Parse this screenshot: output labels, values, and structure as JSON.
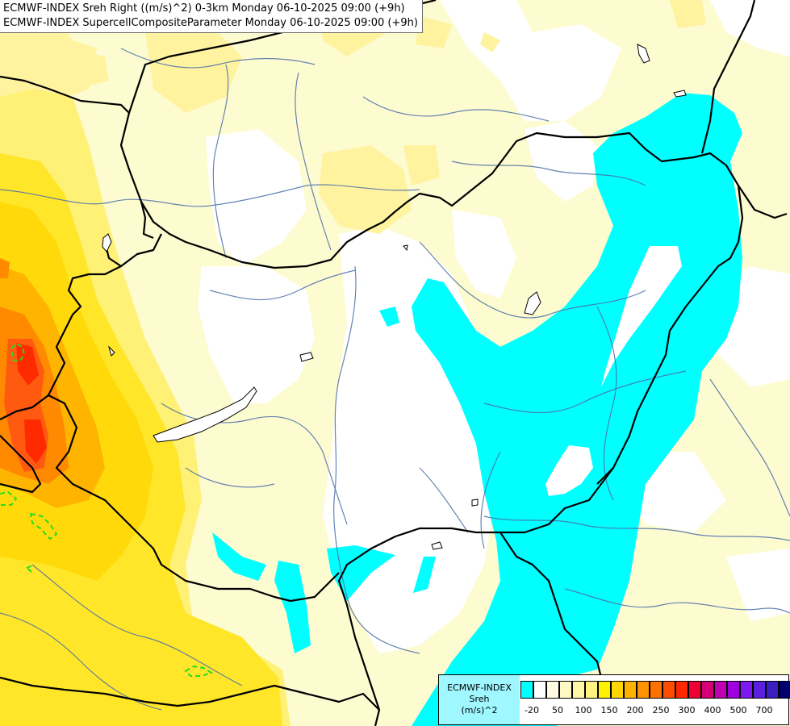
{
  "title": {
    "line1": "ECMWF-INDEX Sreh Right ((m/s)^2) 0-3km Monday 06-10-2025 09:00 (+9h)",
    "line2": "ECMWF-INDEX SupercellCompositeParameter Monday 06-10-2025 09:00 (+9h)"
  },
  "legend": {
    "source": "ECMWF-INDEX",
    "variable": "Sreh",
    "unit": "(m/s)^2",
    "colors": [
      "#00ffff",
      "#ffffff",
      "#fffbe3",
      "#fff9c6",
      "#fff6a6",
      "#fff37f",
      "#fff200",
      "#ffd700",
      "#ffb300",
      "#ff9400",
      "#ff7100",
      "#ff4d00",
      "#ff2800",
      "#ee0033",
      "#d50077",
      "#c000b3",
      "#a000dd",
      "#7c18f0",
      "#5c1fe0",
      "#3a1fc0",
      "#00006e"
    ],
    "ticks": [
      "-20",
      "50",
      "100",
      "150",
      "200",
      "250",
      "300",
      "400",
      "500",
      "700"
    ]
  },
  "map_colors": {
    "cyan": "#00ffff",
    "pale_yellow": "#fdfbd0",
    "light_yellow": "#fdf5a6",
    "yellow": "#ffea30",
    "bright_yellow": "#ffdf00",
    "orange": "#ffb400",
    "dark_orange": "#ff8a00",
    "red_orange": "#ff5a10",
    "red": "#ff2a00",
    "supercell_contour": "#22dd22",
    "border": "#000000",
    "river": "#4a6fa8"
  }
}
